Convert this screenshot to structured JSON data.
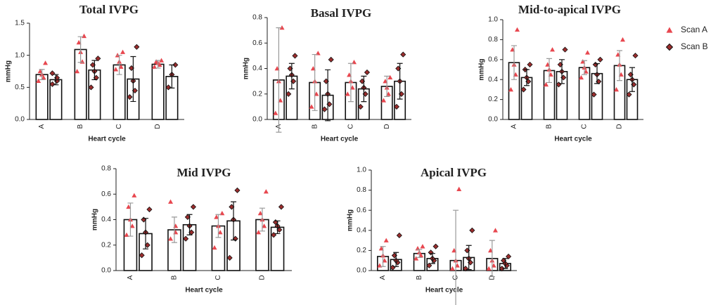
{
  "chart_data": [
    {
      "type": "bar",
      "title": "Total IVPG",
      "xlabel": "Heart cycle",
      "ylabel": "mmHg",
      "categories": [
        "A",
        "B",
        "C",
        "D"
      ],
      "ylim": [
        0,
        1.5
      ],
      "yticks": [
        {
          "value": 0,
          "label": "0.0"
        },
        {
          "value": 0.5,
          "label": "0.5"
        },
        {
          "value": 1,
          "label": "1.0"
        },
        {
          "value": 1.5,
          "label": "1.5"
        }
      ],
      "series": [
        {
          "name": "Scan A",
          "color": "#e8474f",
          "values": [
            0.7,
            1.09,
            0.85,
            0.86
          ],
          "errors": [
            0.08,
            0.2,
            0.15,
            0.06
          ],
          "points": [
            [
              0.6,
              0.65,
              0.7,
              0.75,
              0.88
            ],
            [
              0.75,
              0.9,
              1.05,
              1.2,
              1.3
            ],
            [
              0.78,
              0.82,
              0.9,
              1.0,
              1.05
            ],
            [
              0.82,
              0.85,
              0.88,
              0.9,
              0.92
            ]
          ]
        },
        {
          "name": "Scan B",
          "color": "#9b2d2d",
          "values": [
            0.62,
            0.77,
            0.63,
            0.67
          ],
          "errors": [
            0.08,
            0.15,
            0.35,
            0.18
          ],
          "points": [
            [
              0.55,
              0.6,
              0.65,
              0.72
            ],
            [
              0.5,
              0.65,
              0.75,
              0.85,
              0.95
            ],
            [
              0.35,
              0.45,
              0.6,
              0.8,
              1.13
            ],
            [
              0.5,
              0.7,
              0.85
            ]
          ]
        }
      ]
    },
    {
      "type": "bar",
      "title": "Basal IVPG",
      "xlabel": "Heart cycle",
      "ylabel": "mmHg",
      "categories": [
        "A",
        "B",
        "C",
        "D"
      ],
      "ylim": [
        0,
        0.8
      ],
      "yticks": [
        {
          "value": 0,
          "label": "0.0"
        },
        0.2,
        0.4,
        0.6,
        0.8
      ],
      "series": [
        {
          "name": "Scan A",
          "color": "#e8474f",
          "values": [
            0.31,
            0.29,
            0.29,
            0.26
          ],
          "errors": [
            0.41,
            0.22,
            0.15,
            0.08
          ],
          "points": [
            [
              0.05,
              0.15,
              0.3,
              0.4,
              0.72
            ],
            [
              0.1,
              0.2,
              0.3,
              0.4,
              0.52
            ],
            [
              0.2,
              0.25,
              0.3,
              0.35,
              0.45
            ],
            [
              0.15,
              0.2,
              0.25,
              0.3,
              0.33
            ]
          ]
        },
        {
          "name": "Scan B",
          "color": "#9b2d2d",
          "values": [
            0.34,
            0.19,
            0.24,
            0.3
          ],
          "errors": [
            0.1,
            0.2,
            0.1,
            0.14
          ],
          "points": [
            [
              0.2,
              0.3,
              0.35,
              0.4,
              0.5
            ],
            [
              0.08,
              0.12,
              0.2,
              0.3,
              0.47
            ],
            [
              0.1,
              0.2,
              0.25,
              0.3,
              0.37
            ],
            [
              0.1,
              0.2,
              0.3,
              0.4,
              0.51
            ]
          ]
        }
      ]
    },
    {
      "type": "bar",
      "title": "Mid-to-apical IVPG",
      "xlabel": "Heart cycle",
      "ylabel": "mmHg",
      "categories": [
        "A",
        "B",
        "C",
        "D"
      ],
      "ylim": [
        0,
        1
      ],
      "legend": "right",
      "yticks": [
        {
          "value": 0,
          "label": "0.0"
        },
        0.2,
        0.4,
        0.6,
        0.8,
        {
          "value": 1,
          "label": "1.0"
        }
      ],
      "series": [
        {
          "name": "Scan A",
          "color": "#e8474f",
          "values": [
            0.57,
            0.49,
            0.52,
            0.54
          ],
          "errors": [
            0.17,
            0.12,
            0.07,
            0.15
          ],
          "points": [
            [
              0.3,
              0.45,
              0.55,
              0.7,
              0.9
            ],
            [
              0.35,
              0.45,
              0.5,
              0.55,
              0.7
            ],
            [
              0.42,
              0.48,
              0.52,
              0.58,
              0.67
            ],
            [
              0.3,
              0.45,
              0.55,
              0.65,
              0.8
            ]
          ]
        },
        {
          "name": "Scan B",
          "color": "#9b2d2d",
          "values": [
            0.42,
            0.48,
            0.46,
            0.4
          ],
          "errors": [
            0.08,
            0.12,
            0.1,
            0.12
          ],
          "points": [
            [
              0.3,
              0.38,
              0.42,
              0.5,
              0.55
            ],
            [
              0.35,
              0.42,
              0.48,
              0.55,
              0.7
            ],
            [
              0.25,
              0.38,
              0.45,
              0.55,
              0.6
            ],
            [
              0.25,
              0.35,
              0.4,
              0.45,
              0.64
            ]
          ]
        }
      ]
    },
    {
      "type": "bar",
      "title": "Mid IVPG",
      "xlabel": "Heart cycle",
      "ylabel": "mmHg",
      "categories": [
        "A",
        "B",
        "C",
        "D"
      ],
      "ylim": [
        0,
        0.8
      ],
      "yticks": [
        {
          "value": 0,
          "label": "0.0"
        },
        0.2,
        0.4,
        0.6,
        0.8
      ],
      "series": [
        {
          "name": "Scan A",
          "color": "#e8474f",
          "values": [
            0.4,
            0.32,
            0.35,
            0.4
          ],
          "errors": [
            0.13,
            0.1,
            0.09,
            0.09
          ],
          "points": [
            [
              0.28,
              0.35,
              0.4,
              0.5,
              0.59
            ],
            [
              0.25,
              0.3,
              0.35,
              0.54
            ],
            [
              0.18,
              0.3,
              0.35,
              0.42,
              0.45
            ],
            [
              0.3,
              0.35,
              0.4,
              0.45,
              0.62
            ]
          ]
        },
        {
          "name": "Scan B",
          "color": "#9b2d2d",
          "values": [
            0.29,
            0.36,
            0.39,
            0.34
          ],
          "errors": [
            0.12,
            0.08,
            0.15,
            0.05
          ],
          "points": [
            [
              0.12,
              0.2,
              0.3,
              0.4,
              0.48
            ],
            [
              0.25,
              0.3,
              0.35,
              0.42,
              0.5
            ],
            [
              0.1,
              0.25,
              0.4,
              0.5,
              0.63
            ],
            [
              0.28,
              0.32,
              0.35,
              0.38,
              0.5
            ]
          ]
        }
      ]
    },
    {
      "type": "bar",
      "title": "Apical IVPG",
      "xlabel": "Heart cycle",
      "ylabel": "mmHg",
      "categories": [
        "A",
        "B",
        "C",
        "D"
      ],
      "ylim": [
        0,
        1
      ],
      "yticks": [
        {
          "value": 0,
          "label": "0.0"
        },
        0.2,
        0.4,
        0.6,
        0.8,
        {
          "value": 1,
          "label": "1.0"
        }
      ],
      "series": [
        {
          "name": "Scan A",
          "color": "#e8474f",
          "values": [
            0.14,
            0.17,
            0.1,
            0.12
          ],
          "errors": [
            0.1,
            0.04,
            0.5,
            0.18
          ],
          "points": [
            [
              0.05,
              0.1,
              0.15,
              0.22,
              0.3
            ],
            [
              0.12,
              0.15,
              0.18,
              0.22,
              0.24
            ],
            [
              0.02,
              0.05,
              0.1,
              0.2,
              0.81
            ],
            [
              0.02,
              0.05,
              0.1,
              0.2,
              0.4
            ]
          ]
        },
        {
          "name": "Scan B",
          "color": "#9b2d2d",
          "values": [
            0.11,
            0.12,
            0.13,
            0.07
          ],
          "errors": [
            0.07,
            0.05,
            0.12,
            0.05
          ],
          "points": [
            [
              0.03,
              0.08,
              0.1,
              0.15,
              0.35
            ],
            [
              0.05,
              0.1,
              0.12,
              0.18,
              0.24
            ],
            [
              0.02,
              0.08,
              0.12,
              0.2,
              0.4
            ],
            [
              0.02,
              0.05,
              0.07,
              0.1,
              0.14
            ]
          ]
        }
      ]
    }
  ]
}
